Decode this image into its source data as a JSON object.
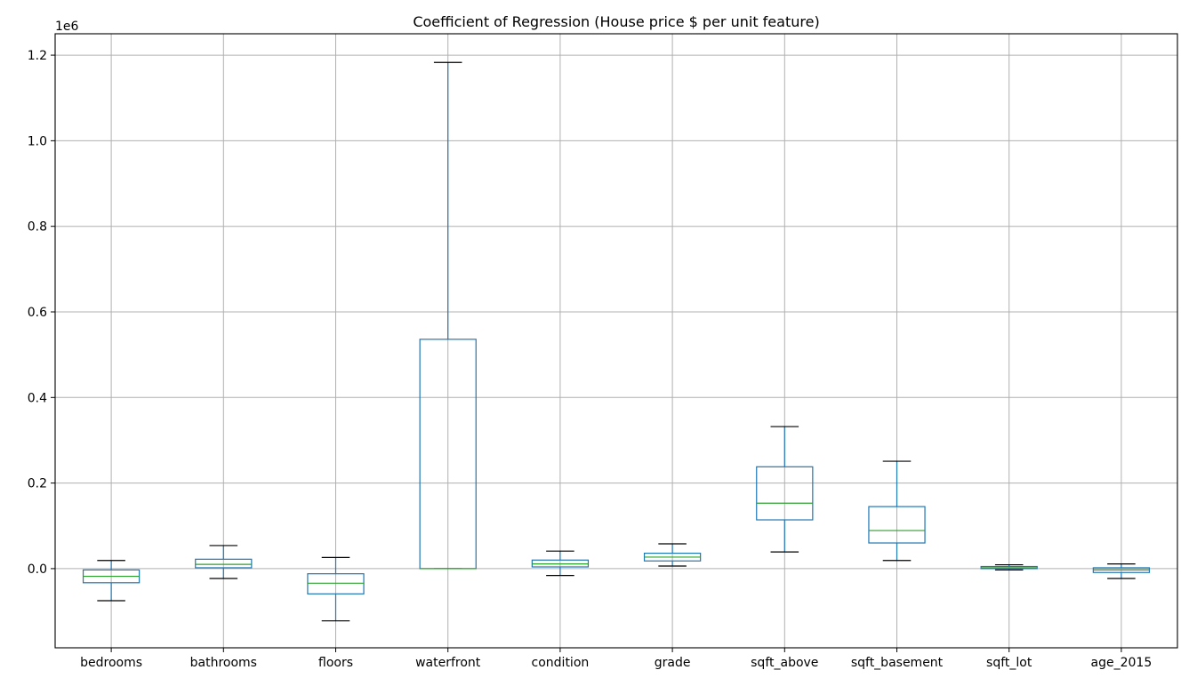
{
  "chart_data": {
    "type": "box",
    "title": "Coefficient of Regression (House price $ per unit feature)",
    "y_offset_label": "1e6",
    "xlabel": "",
    "ylabel": "",
    "ylim": [
      -0.185,
      1.25
    ],
    "yticks": [
      0.0,
      0.2,
      0.4,
      0.6,
      0.8,
      1.0,
      1.2
    ],
    "ytick_labels": [
      "0.0",
      "0.2",
      "0.4",
      "0.6",
      "0.8",
      "1.0",
      "1.2"
    ],
    "grid": true,
    "categories": [
      "bedrooms",
      "bathrooms",
      "floors",
      "waterfront",
      "condition",
      "grade",
      "sqft_above",
      "sqft_basement",
      "sqft_lot",
      "age_2015"
    ],
    "boxes": [
      {
        "name": "bedrooms",
        "whislo": -0.075,
        "q1": -0.033,
        "med": -0.018,
        "q3": -0.003,
        "whishi": 0.019
      },
      {
        "name": "bathrooms",
        "whislo": -0.023,
        "q1": 0.002,
        "med": 0.01,
        "q3": 0.022,
        "whishi": 0.054
      },
      {
        "name": "floors",
        "whislo": -0.122,
        "q1": -0.059,
        "med": -0.034,
        "q3": -0.012,
        "whishi": 0.026
      },
      {
        "name": "waterfront",
        "whislo": 0.0,
        "q1": 0.0,
        "med": 0.0,
        "q3": 0.536,
        "whishi": 1.183
      },
      {
        "name": "condition",
        "whislo": -0.016,
        "q1": 0.004,
        "med": 0.011,
        "q3": 0.02,
        "whishi": 0.041
      },
      {
        "name": "grade",
        "whislo": 0.006,
        "q1": 0.018,
        "med": 0.027,
        "q3": 0.036,
        "whishi": 0.058
      },
      {
        "name": "sqft_above",
        "whislo": 0.039,
        "q1": 0.114,
        "med": 0.153,
        "q3": 0.238,
        "whishi": 0.332
      },
      {
        "name": "sqft_basement",
        "whislo": 0.019,
        "q1": 0.06,
        "med": 0.089,
        "q3": 0.145,
        "whishi": 0.251
      },
      {
        "name": "sqft_lot",
        "whislo": -0.003,
        "q1": 0.0,
        "med": 0.002,
        "q3": 0.005,
        "whishi": 0.009
      },
      {
        "name": "age_2015",
        "whislo": -0.023,
        "q1": -0.009,
        "med": -0.003,
        "q3": 0.002,
        "whishi": 0.011
      }
    ]
  }
}
